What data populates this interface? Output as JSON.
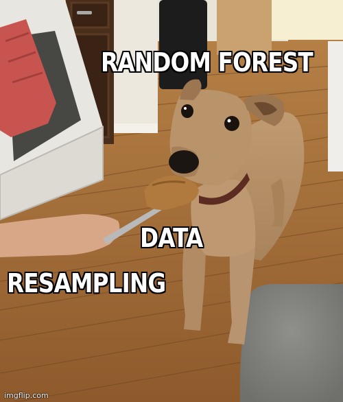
{
  "captions": {
    "top": "RANDOM FOREST",
    "middle": "DATA",
    "bottom": "RESAMPLING"
  },
  "watermark": "imgflip.com",
  "colors": {
    "caption_text": "#ffffff",
    "caption_outline": "#000000",
    "floor": "#a8703c",
    "dog": "#b7926a",
    "peanut_butter": "#b07a3e"
  }
}
